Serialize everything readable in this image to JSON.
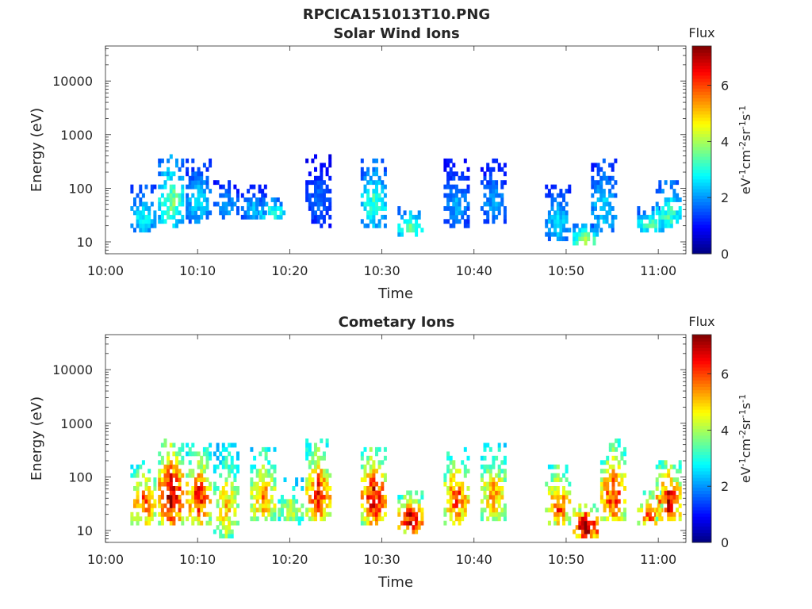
{
  "figure": {
    "title": "RPCICA151013T10.PNG"
  },
  "colors": {
    "background": "#ffffff",
    "axis": "#262626",
    "colormap": "jet"
  },
  "chart_data": [
    {
      "type": "heatmap",
      "title": "Solar Wind Ions",
      "xlabel": "Time",
      "ylabel": "Energy (eV)",
      "y_scale": "log",
      "ylim": [
        6,
        45000
      ],
      "xlim": [
        "10:00",
        "11:03"
      ],
      "x_ticks": [
        "10:00",
        "10:10",
        "10:20",
        "10:30",
        "10:40",
        "10:50",
        "11:00"
      ],
      "y_ticks": [
        "10",
        "100",
        "1000",
        "10000"
      ],
      "colorbar": {
        "label": "Flux",
        "units_label": "eV-1cm-2sr-1s-1",
        "range": [
          0,
          7.4
        ],
        "ticks": [
          "0",
          "2",
          "4",
          "6"
        ]
      },
      "bursts": [
        {
          "t": "10:04",
          "e_min": 14,
          "e_max": 110,
          "level": 2.6
        },
        {
          "t": "10:07",
          "e_min": 20,
          "e_max": 400,
          "level": 3.4
        },
        {
          "t": "10:10",
          "e_min": 22,
          "e_max": 330,
          "level": 2.4
        },
        {
          "t": "10:13",
          "e_min": 25,
          "e_max": 140,
          "level": 2.0
        },
        {
          "t": "10:16",
          "e_min": 25,
          "e_max": 110,
          "level": 2.2
        },
        {
          "t": "10:18",
          "e_min": 25,
          "e_max": 70,
          "level": 3.0
        },
        {
          "t": "10:23",
          "e_min": 20,
          "e_max": 420,
          "level": 1.6
        },
        {
          "t": "10:29",
          "e_min": 20,
          "e_max": 330,
          "level": 3.0
        },
        {
          "t": "10:33",
          "e_min": 12,
          "e_max": 45,
          "level": 3.2
        },
        {
          "t": "10:38",
          "e_min": 18,
          "e_max": 340,
          "level": 2.0
        },
        {
          "t": "10:42",
          "e_min": 22,
          "e_max": 340,
          "level": 2.0
        },
        {
          "t": "10:49",
          "e_min": 10,
          "e_max": 110,
          "level": 2.4
        },
        {
          "t": "10:52",
          "e_min": 8,
          "e_max": 22,
          "level": 3.6
        },
        {
          "t": "10:54",
          "e_min": 14,
          "e_max": 350,
          "level": 2.4
        },
        {
          "t": "10:59",
          "e_min": 14,
          "e_max": 45,
          "level": 3.0
        },
        {
          "t": "11:01",
          "e_min": 15,
          "e_max": 140,
          "level": 3.0
        }
      ]
    },
    {
      "type": "heatmap",
      "title": "Cometary Ions",
      "xlabel": "Time",
      "ylabel": "Energy (eV)",
      "y_scale": "log",
      "ylim": [
        6,
        45000
      ],
      "xlim": [
        "10:00",
        "11:03"
      ],
      "x_ticks": [
        "10:00",
        "10:10",
        "10:20",
        "10:30",
        "10:40",
        "10:50",
        "11:00"
      ],
      "y_ticks": [
        "10",
        "100",
        "1000",
        "10000"
      ],
      "colorbar": {
        "label": "Flux",
        "units_label": "eV-1cm-2sr-1s-1",
        "range": [
          0,
          7.4
        ],
        "ticks": [
          "0",
          "2",
          "4",
          "6"
        ]
      },
      "bursts": [
        {
          "t": "10:04",
          "e_min": 12,
          "e_max": 200,
          "level": 5.4
        },
        {
          "t": "10:07",
          "e_min": 12,
          "e_max": 500,
          "level": 6.6
        },
        {
          "t": "10:10",
          "e_min": 12,
          "e_max": 420,
          "level": 5.8
        },
        {
          "t": "10:13",
          "e_min": 7,
          "e_max": 400,
          "level": 4.6
        },
        {
          "t": "10:17",
          "e_min": 14,
          "e_max": 350,
          "level": 5.2
        },
        {
          "t": "10:20",
          "e_min": 12,
          "e_max": 90,
          "level": 4.2
        },
        {
          "t": "10:23",
          "e_min": 14,
          "e_max": 480,
          "level": 5.8
        },
        {
          "t": "10:29",
          "e_min": 12,
          "e_max": 380,
          "level": 6.2
        },
        {
          "t": "10:33",
          "e_min": 8,
          "e_max": 60,
          "level": 6.2
        },
        {
          "t": "10:38",
          "e_min": 12,
          "e_max": 360,
          "level": 5.6
        },
        {
          "t": "10:42",
          "e_min": 14,
          "e_max": 420,
          "level": 5.0
        },
        {
          "t": "10:49",
          "e_min": 12,
          "e_max": 160,
          "level": 5.6
        },
        {
          "t": "10:52",
          "e_min": 7,
          "e_max": 32,
          "level": 7.0
        },
        {
          "t": "10:55",
          "e_min": 14,
          "e_max": 480,
          "level": 5.8
        },
        {
          "t": "10:59",
          "e_min": 12,
          "e_max": 60,
          "level": 5.6
        },
        {
          "t": "11:01",
          "e_min": 14,
          "e_max": 200,
          "level": 6.2
        }
      ]
    }
  ]
}
